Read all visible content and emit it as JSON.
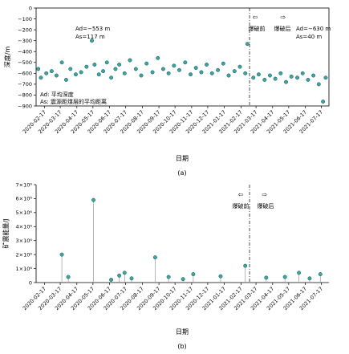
{
  "chart_data": [
    {
      "panel_label": "(a)",
      "type": "scatter",
      "xlabel": "日期",
      "ylabel": "深度/m",
      "ylim": [
        -900,
        0
      ],
      "yticks": [
        0,
        -100,
        -200,
        -300,
        -400,
        -500,
        -600,
        -700,
        -800,
        -900
      ],
      "x_range": [
        "2020-02-01",
        "2021-07-31"
      ],
      "x_ticks": [
        "2020-02-17",
        "2020-03-17",
        "2020-04-17",
        "2020-05-17",
        "2020-06-17",
        "2020-07-17",
        "2020-08-17",
        "2020-09-17",
        "2020-10-17",
        "2020-11-17",
        "2020-12-17",
        "2021-01-17",
        "2021-02-17",
        "2021-03-17",
        "2021-04-17",
        "2021-05-17",
        "2021-06-17",
        "2021-07-17"
      ],
      "marker_color": "#3aa7a4",
      "blast_date": "2021-03-05",
      "annotations": {
        "before": "爆破前",
        "after": "爆破后",
        "left_arrow": "⇦",
        "right_arrow": "⇨",
        "before_stats": {
          "ad": "Ad=−553 m",
          "as": "As=117 m"
        },
        "after_stats": {
          "ad": "Ad=−630 m",
          "as": "As=40 m"
        },
        "legend_ad": "Ad: 平均深度",
        "legend_as": "As: 震源距煤层的平均距离"
      },
      "series": [
        {
          "values_summary": "Before blast: mostly −400 to −700 m with a dense lower band near −600 m; after blast: concentrated −550 to −700 m.",
          "points": [
            [
              "2020-02-05",
              -560
            ],
            [
              "2020-02-10",
              -640
            ],
            [
              "2020-02-20",
              -600
            ],
            [
              "2020-03-01",
              -580
            ],
            [
              "2020-03-10",
              -620
            ],
            [
              "2020-03-20",
              -500
            ],
            [
              "2020-03-28",
              -660
            ],
            [
              "2020-04-05",
              -560
            ],
            [
              "2020-04-15",
              -610
            ],
            [
              "2020-04-25",
              -590
            ],
            [
              "2020-05-05",
              -540
            ],
            [
              "2020-05-15",
              -300
            ],
            [
              "2020-05-20",
              -520
            ],
            [
              "2020-05-28",
              -610
            ],
            [
              "2020-06-05",
              -580
            ],
            [
              "2020-06-12",
              -500
            ],
            [
              "2020-06-20",
              -640
            ],
            [
              "2020-06-28",
              -560
            ],
            [
              "2020-07-05",
              -520
            ],
            [
              "2020-07-15",
              -600
            ],
            [
              "2020-07-25",
              -480
            ],
            [
              "2020-08-05",
              -560
            ],
            [
              "2020-08-15",
              -620
            ],
            [
              "2020-08-25",
              -510
            ],
            [
              "2020-09-05",
              -590
            ],
            [
              "2020-09-15",
              -460
            ],
            [
              "2020-09-25",
              -560
            ],
            [
              "2020-10-05",
              -600
            ],
            [
              "2020-10-15",
              -530
            ],
            [
              "2020-10-25",
              -570
            ],
            [
              "2020-11-05",
              -500
            ],
            [
              "2020-11-15",
              -610
            ],
            [
              "2020-11-25",
              -550
            ],
            [
              "2020-12-05",
              -590
            ],
            [
              "2020-12-15",
              -520
            ],
            [
              "2020-12-25",
              -600
            ],
            [
              "2021-01-05",
              -570
            ],
            [
              "2021-01-15",
              -510
            ],
            [
              "2021-01-25",
              -620
            ],
            [
              "2021-02-05",
              -580
            ],
            [
              "2021-02-15",
              -540
            ],
            [
              "2021-02-25",
              -600
            ],
            [
              "2021-03-01",
              -330
            ],
            [
              "2021-03-12",
              -640
            ],
            [
              "2021-03-22",
              -610
            ],
            [
              "2021-04-02",
              -660
            ],
            [
              "2021-04-12",
              -620
            ],
            [
              "2021-04-22",
              -650
            ],
            [
              "2021-05-02",
              -600
            ],
            [
              "2021-05-12",
              -680
            ],
            [
              "2021-05-22",
              -630
            ],
            [
              "2021-06-02",
              -640
            ],
            [
              "2021-06-12",
              -600
            ],
            [
              "2021-06-22",
              -660
            ],
            [
              "2021-07-02",
              -620
            ],
            [
              "2021-07-12",
              -700
            ],
            [
              "2021-07-20",
              -860
            ],
            [
              "2021-07-25",
              -640
            ]
          ]
        }
      ]
    },
    {
      "panel_label": "(b)",
      "type": "scatter",
      "subtype": "stem",
      "xlabel": "日期",
      "ylabel": "矿震能量/J",
      "ylim": [
        0,
        7000000
      ],
      "yticks": [
        "0",
        "1×10⁶",
        "2×10⁶",
        "3×10⁶",
        "4×10⁶",
        "5×10⁶",
        "6×10⁶",
        "7×10⁶"
      ],
      "ytick_values": [
        0,
        1000000,
        2000000,
        3000000,
        4000000,
        5000000,
        6000000,
        7000000
      ],
      "x_range": [
        "2020-02-01",
        "2021-07-31"
      ],
      "x_ticks": [
        "2020-02-17",
        "2020-03-17",
        "2020-04-17",
        "2020-05-17",
        "2020-06-17",
        "2020-07-17",
        "2020-08-17",
        "2020-09-17",
        "2020-10-17",
        "2020-11-17",
        "2020-12-17",
        "2021-01-17",
        "2021-02-17",
        "2021-03-17",
        "2021-04-17",
        "2021-05-17",
        "2021-06-17",
        "2021-07-17"
      ],
      "marker_color": "#3aa7a4",
      "blast_date": "2021-03-05",
      "annotations": {
        "before": "爆破前",
        "after": "爆破后",
        "left_arrow": "⇦",
        "right_arrow": "⇨"
      },
      "series": [
        {
          "points": [
            [
              "2020-03-20",
              2000000
            ],
            [
              "2020-04-01",
              400000
            ],
            [
              "2020-05-18",
              5900000
            ],
            [
              "2020-06-20",
              200000
            ],
            [
              "2020-07-05",
              500000
            ],
            [
              "2020-07-15",
              700000
            ],
            [
              "2020-07-28",
              300000
            ],
            [
              "2020-09-10",
              1800000
            ],
            [
              "2020-10-05",
              400000
            ],
            [
              "2020-11-01",
              250000
            ],
            [
              "2020-11-20",
              600000
            ],
            [
              "2021-01-10",
              450000
            ],
            [
              "2021-02-25",
              1200000
            ],
            [
              "2021-04-05",
              350000
            ],
            [
              "2021-05-10",
              400000
            ],
            [
              "2021-06-05",
              700000
            ],
            [
              "2021-06-25",
              300000
            ],
            [
              "2021-07-15",
              600000
            ]
          ]
        }
      ]
    }
  ]
}
